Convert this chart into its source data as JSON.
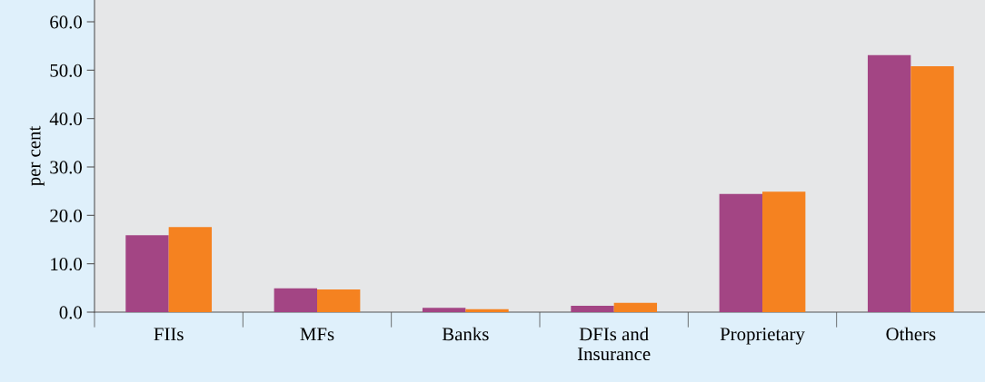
{
  "chart_data": {
    "type": "bar",
    "ylabel": "per cent",
    "categories": [
      "FIIs",
      "MFs",
      "Banks",
      "DFIs and\nInsurance",
      "Proprietary",
      "Others"
    ],
    "series": [
      {
        "color": "#a34584",
        "values": [
          15.9,
          4.9,
          0.9,
          1.3,
          24.4,
          53.1
        ]
      },
      {
        "color": "#f58220",
        "values": [
          17.6,
          4.7,
          0.6,
          1.9,
          24.9,
          50.8
        ]
      }
    ],
    "ylim": [
      0,
      64.5
    ],
    "yticks": [
      {
        "value": 0,
        "label": "0.0"
      },
      {
        "value": 10,
        "label": "10.0"
      },
      {
        "value": 20,
        "label": "20.0"
      },
      {
        "value": 30,
        "label": "30.0"
      },
      {
        "value": 40,
        "label": "40.0"
      },
      {
        "value": 50,
        "label": "50.0"
      },
      {
        "value": 60,
        "label": "60.0"
      }
    ],
    "grid": false,
    "legend": false
  }
}
